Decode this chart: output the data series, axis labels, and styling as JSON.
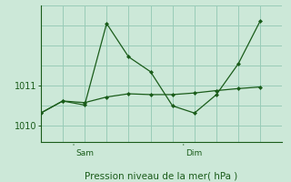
{
  "background_color": "#cce8d8",
  "grid_color": "#99ccb8",
  "line_color": "#1a5c1a",
  "marker_color": "#1a5c1a",
  "xlabel": "Pression niveau de la mer( hPa )",
  "ylim": [
    1009.6,
    1013.0
  ],
  "xlim": [
    0,
    11
  ],
  "yticks": [
    1010,
    1011
  ],
  "sam_x": 1.5,
  "dim_x": 6.5,
  "series1_x": [
    0,
    1,
    2,
    3,
    4,
    5,
    6,
    7,
    8,
    9,
    10
  ],
  "series1_y": [
    1010.32,
    1010.62,
    1010.58,
    1010.72,
    1010.8,
    1010.78,
    1010.78,
    1010.82,
    1010.88,
    1010.93,
    1010.97
  ],
  "series2_x": [
    0,
    1,
    2,
    3,
    4,
    5,
    6,
    7,
    8,
    9,
    10
  ],
  "series2_y": [
    1010.32,
    1010.62,
    1010.52,
    1012.55,
    1011.72,
    1011.35,
    1010.5,
    1010.32,
    1010.78,
    1011.55,
    1012.62
  ]
}
